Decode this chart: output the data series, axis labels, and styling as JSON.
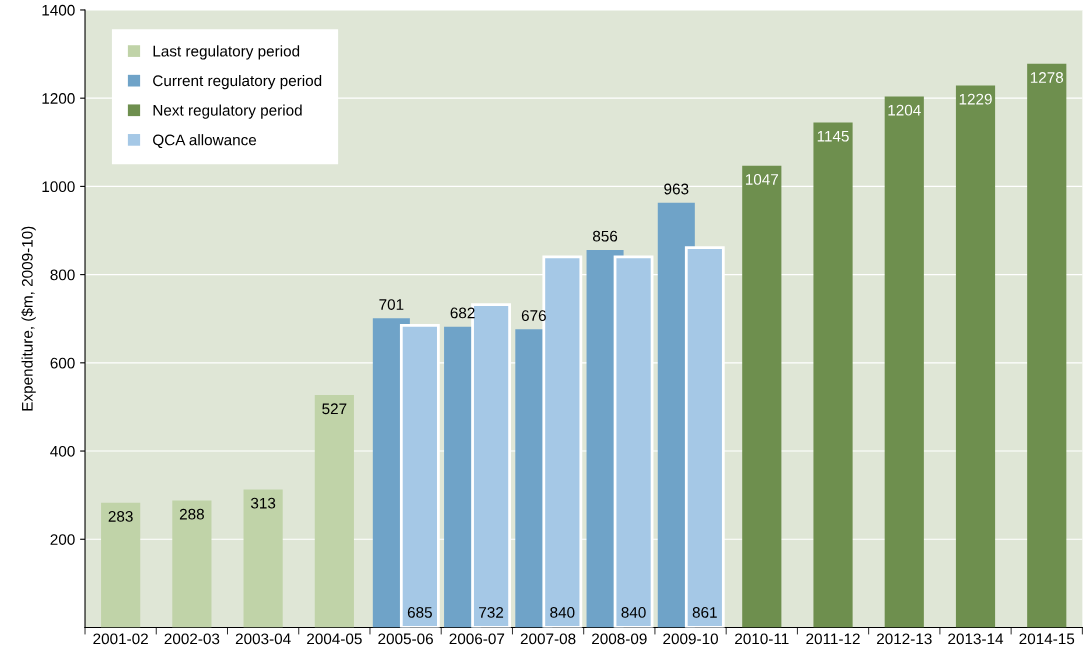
{
  "chart_data": {
    "type": "bar",
    "ylabel": "Expenditure, ($m, 2009-10)",
    "categories": [
      "2001-02",
      "2002-03",
      "2003-04",
      "2004-05",
      "2005-06",
      "2006-07",
      "2007-08",
      "2008-09",
      "2009-10",
      "2010-11",
      "2011-12",
      "2012-13",
      "2013-14",
      "2014-15"
    ],
    "series": [
      {
        "name": "Last regulatory period",
        "color": "#c0d3a8",
        "values": [
          283,
          288,
          313,
          527,
          null,
          null,
          null,
          null,
          null,
          null,
          null,
          null,
          null,
          null
        ]
      },
      {
        "name": "Current regulatory period",
        "color": "#6fa3c8",
        "values": [
          null,
          null,
          null,
          null,
          701,
          682,
          676,
          856,
          963,
          null,
          null,
          null,
          null,
          null
        ]
      },
      {
        "name": "Next regulatory period",
        "color": "#6e8f4e",
        "values": [
          null,
          null,
          null,
          null,
          null,
          null,
          null,
          null,
          null,
          1047,
          1145,
          1204,
          1229,
          1278
        ]
      },
      {
        "name": "QCA allowance",
        "color": "#a5c8e6",
        "values": [
          null,
          null,
          null,
          null,
          685,
          732,
          840,
          840,
          861,
          null,
          null,
          null,
          null,
          null
        ]
      }
    ],
    "ylim": [
      0,
      1400
    ],
    "yticks": [
      200,
      400,
      600,
      800,
      1000,
      1200,
      1400
    ],
    "grid": "y",
    "legend": "top left",
    "data_labels": true
  }
}
